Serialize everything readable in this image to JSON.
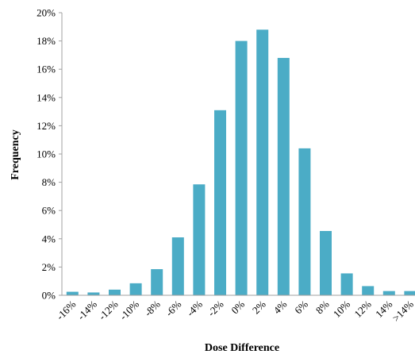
{
  "chart_data": {
    "type": "bar",
    "title": "",
    "xlabel": "Dose Difference",
    "ylabel": "Frequency",
    "categories": [
      "-16%",
      "-14%",
      "-12%",
      "-10%",
      "-8%",
      "-6%",
      "-4%",
      "-2%",
      "0%",
      "2%",
      "4%",
      "6%",
      "8%",
      "10%",
      "12%",
      "14%",
      ">14%"
    ],
    "values": [
      0.25,
      0.2,
      0.4,
      0.85,
      1.85,
      4.1,
      7.85,
      13.1,
      18.0,
      18.8,
      16.8,
      10.4,
      4.55,
      1.55,
      0.65,
      0.3,
      0.3
    ],
    "ylim": [
      0,
      20
    ],
    "y_ticks": [
      0,
      2,
      4,
      6,
      8,
      10,
      12,
      14,
      16,
      18,
      20
    ],
    "y_tick_labels": [
      "0%",
      "2%",
      "4%",
      "6%",
      "8%",
      "10%",
      "12%",
      "14%",
      "16%",
      "18%",
      "20%"
    ],
    "bar_color": "#4bacc6",
    "grid": false,
    "legend": "none"
  }
}
